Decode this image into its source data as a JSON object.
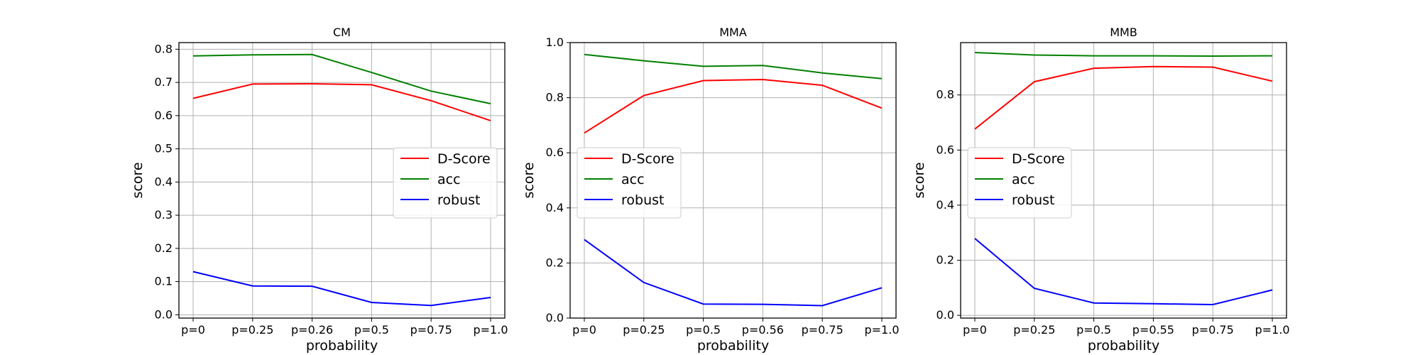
{
  "chart_data": [
    {
      "type": "line",
      "title": "CM",
      "xlabel": "probability",
      "ylabel": "score",
      "categories": [
        "p=0",
        "p=0.25",
        "p=0.26",
        "p=0.5",
        "p=0.75",
        "p=1.0"
      ],
      "ylim": [
        -0.01,
        0.82
      ],
      "yticks": [
        "0.0",
        "0.1",
        "0.2",
        "0.3",
        "0.4",
        "0.5",
        "0.6",
        "0.7",
        "0.8"
      ],
      "grid": true,
      "legend_position": "center-right",
      "series": [
        {
          "name": "D-Score",
          "color": "#ff0000",
          "values": [
            0.652,
            0.695,
            0.696,
            0.693,
            0.645,
            0.585
          ]
        },
        {
          "name": "acc",
          "color": "#008000",
          "values": [
            0.78,
            0.783,
            0.784,
            0.73,
            0.674,
            0.636
          ]
        },
        {
          "name": "robust",
          "color": "#0000ff",
          "values": [
            0.13,
            0.087,
            0.086,
            0.037,
            0.028,
            0.052
          ]
        }
      ]
    },
    {
      "type": "line",
      "title": "MMA",
      "xlabel": "probability",
      "ylabel": "score",
      "categories": [
        "p=0",
        "p=0.25",
        "p=0.5",
        "p=0.56",
        "p=0.75",
        "p=1.0"
      ],
      "ylim": [
        0.0,
        1.0
      ],
      "yticks": [
        "0.0",
        "0.2",
        "0.4",
        "0.6",
        "0.8",
        "1.0"
      ],
      "grid": true,
      "legend_position": "center-left",
      "series": [
        {
          "name": "D-Score",
          "color": "#ff0000",
          "values": [
            0.672,
            0.808,
            0.862,
            0.866,
            0.845,
            0.762
          ]
        },
        {
          "name": "acc",
          "color": "#008000",
          "values": [
            0.957,
            0.934,
            0.914,
            0.917,
            0.89,
            0.869
          ]
        },
        {
          "name": "robust",
          "color": "#0000ff",
          "values": [
            0.285,
            0.129,
            0.051,
            0.05,
            0.045,
            0.11
          ]
        }
      ]
    },
    {
      "type": "line",
      "title": "MMB",
      "xlabel": "probability",
      "ylabel": "score",
      "categories": [
        "p=0",
        "p=0.25",
        "p=0.5",
        "p=0.55",
        "p=0.75",
        "p=1.0"
      ],
      "ylim": [
        -0.01,
        0.99
      ],
      "yticks": [
        "0.0",
        "0.2",
        "0.4",
        "0.6",
        "0.8"
      ],
      "grid": true,
      "legend_position": "center-left",
      "series": [
        {
          "name": "D-Score",
          "color": "#ff0000",
          "values": [
            0.676,
            0.848,
            0.897,
            0.903,
            0.901,
            0.85
          ]
        },
        {
          "name": "acc",
          "color": "#008000",
          "values": [
            0.954,
            0.945,
            0.942,
            0.942,
            0.941,
            0.942
          ]
        },
        {
          "name": "robust",
          "color": "#0000ff",
          "values": [
            0.279,
            0.098,
            0.045,
            0.042,
            0.039,
            0.092
          ]
        }
      ]
    }
  ]
}
